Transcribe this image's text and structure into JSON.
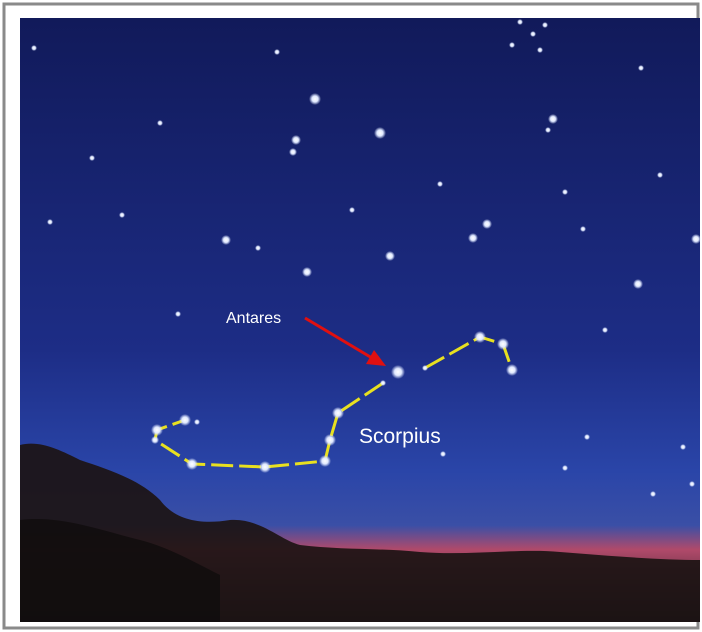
{
  "labels": {
    "star": "Antares",
    "constellation": "Scorpius"
  }
}
